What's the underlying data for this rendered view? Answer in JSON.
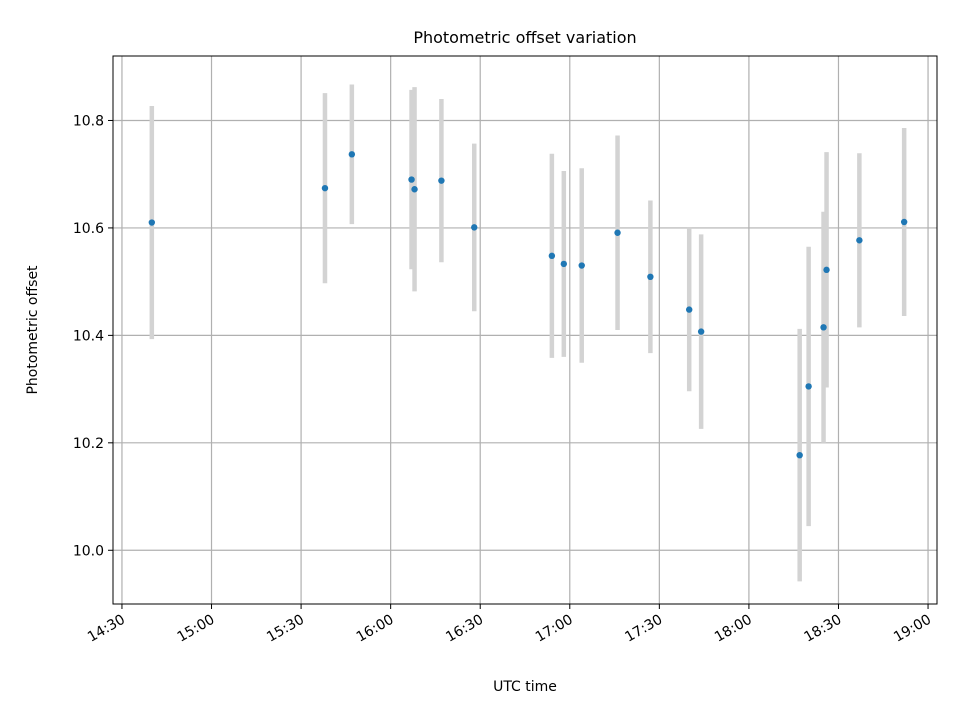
{
  "chart_data": {
    "type": "scatter",
    "title": "Photometric offset variation",
    "xlabel": "UTC time",
    "ylabel": "Photometric offset",
    "xlim": [
      "14:27",
      "19:03"
    ],
    "ylim": [
      9.9,
      10.92
    ],
    "x_ticks": [
      "14:30",
      "15:00",
      "15:30",
      "16:00",
      "16:30",
      "17:00",
      "17:30",
      "18:00",
      "18:30",
      "19:00"
    ],
    "y_ticks": [
      10.0,
      10.2,
      10.4,
      10.6,
      10.8
    ],
    "y_tick_labels": [
      "10.0",
      "10.2",
      "10.4",
      "10.6",
      "10.8"
    ],
    "grid": true,
    "errorbar_color": "#d3d3d3",
    "marker_color": "#1f77b4",
    "points": [
      {
        "x": "14:40",
        "y": 10.61,
        "err": 0.217
      },
      {
        "x": "15:38",
        "y": 10.674,
        "err": 0.177
      },
      {
        "x": "15:47",
        "y": 10.737,
        "err": 0.13
      },
      {
        "x": "16:07",
        "y": 10.69,
        "err": 0.167
      },
      {
        "x": "16:08",
        "y": 10.672,
        "err": 0.19
      },
      {
        "x": "16:17",
        "y": 10.688,
        "err": 0.152
      },
      {
        "x": "16:28",
        "y": 10.601,
        "err": 0.156
      },
      {
        "x": "16:54",
        "y": 10.548,
        "err": 0.19
      },
      {
        "x": "16:58",
        "y": 10.533,
        "err": 0.173
      },
      {
        "x": "17:04",
        "y": 10.53,
        "err": 0.181
      },
      {
        "x": "17:16",
        "y": 10.591,
        "err": 0.181
      },
      {
        "x": "17:27",
        "y": 10.509,
        "err": 0.142
      },
      {
        "x": "17:40",
        "y": 10.448,
        "err": 0.152
      },
      {
        "x": "17:44",
        "y": 10.407,
        "err": 0.181
      },
      {
        "x": "18:17",
        "y": 10.177,
        "err": 0.235
      },
      {
        "x": "18:20",
        "y": 10.305,
        "err": 0.26
      },
      {
        "x": "18:25",
        "y": 10.415,
        "err": 0.215
      },
      {
        "x": "18:26",
        "y": 10.522,
        "err": 0.219
      },
      {
        "x": "18:37",
        "y": 10.577,
        "err": 0.162
      },
      {
        "x": "18:52",
        "y": 10.611,
        "err": 0.175
      }
    ]
  }
}
